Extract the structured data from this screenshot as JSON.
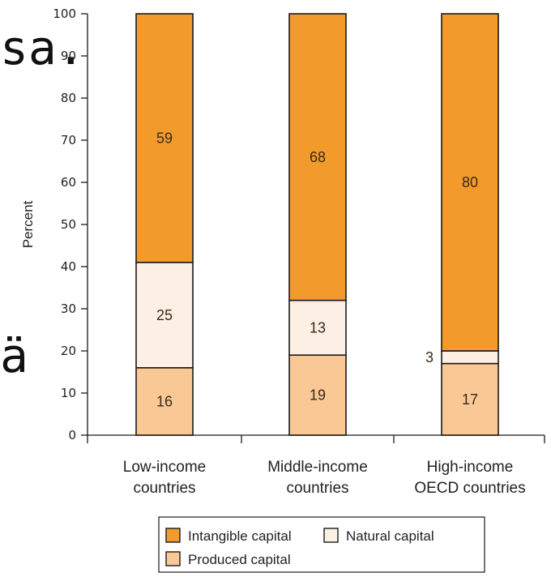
{
  "background_text": {
    "a": "sa.",
    "b": "ä"
  },
  "colors": {
    "intangible": "#F39A2C",
    "natural": "#FBF0E3",
    "produced": "#F9C894",
    "stroke": "#1A1A1A"
  },
  "chart_data": {
    "type": "bar",
    "stacked": true,
    "ylabel": "Percent",
    "ylim": [
      0,
      100
    ],
    "yticks": [
      0,
      10,
      20,
      30,
      40,
      50,
      60,
      70,
      80,
      90,
      100
    ],
    "categories": [
      [
        "Low-income",
        "countries"
      ],
      [
        "Middle-income",
        "countries"
      ],
      [
        "High-income",
        "OECD countries"
      ]
    ],
    "series": [
      {
        "name": "Produced capital",
        "color": "#F9C894",
        "values": [
          16,
          19,
          17
        ]
      },
      {
        "name": "Natural capital",
        "color": "#FBF0E3",
        "values": [
          25,
          13,
          3
        ]
      },
      {
        "name": "Intangible capital",
        "color": "#F39A2C",
        "values": [
          59,
          68,
          80
        ]
      }
    ],
    "data_labels": [
      [
        "16",
        "25",
        "59"
      ],
      [
        "19",
        "13",
        "68"
      ],
      [
        "17",
        "3",
        "80"
      ]
    ],
    "legend": {
      "placement": "bottom",
      "items": [
        "Intangible capital",
        "Natural capital",
        "Produced capital"
      ]
    }
  }
}
